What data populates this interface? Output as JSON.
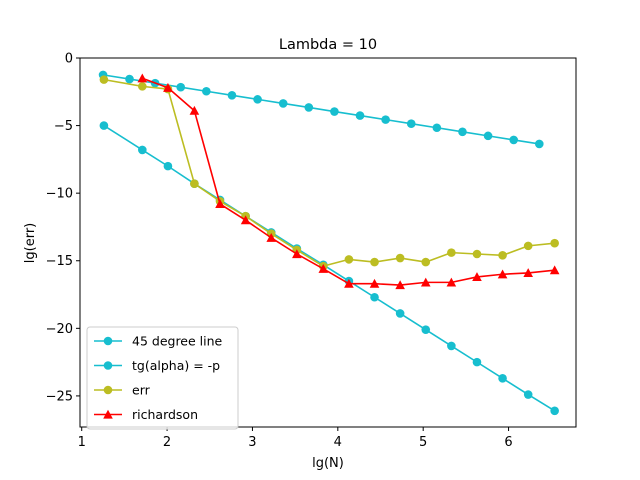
{
  "chart_data": {
    "type": "line",
    "title": "Lambda = 10",
    "xlabel": "lg(N)",
    "ylabel": "lg(err)",
    "xlim": [
      0.98,
      6.79
    ],
    "ylim": [
      -27.3,
      0.0
    ],
    "xticks": [
      1,
      2,
      3,
      4,
      5,
      6
    ],
    "yticks": [
      0,
      -5,
      -10,
      -15,
      -20,
      -25
    ],
    "xtick_labels": [
      "1",
      "2",
      "3",
      "4",
      "5",
      "6"
    ],
    "ytick_labels": [
      "0",
      "−5",
      "−10",
      "−15",
      "−20",
      "−25"
    ],
    "grid": false,
    "legend_position": "lower-left",
    "series": [
      {
        "name": "45 degree line",
        "color": "#17becf",
        "marker": "circle",
        "x": [
          1.25,
          1.56,
          1.86,
          2.16,
          2.46,
          2.76,
          3.06,
          3.36,
          3.66,
          3.96,
          4.26,
          4.56,
          4.86,
          5.16,
          5.46,
          5.76,
          6.06,
          6.36
        ],
        "y": [
          -1.25,
          -1.56,
          -1.86,
          -2.16,
          -2.46,
          -2.76,
          -3.06,
          -3.36,
          -3.66,
          -3.96,
          -4.26,
          -4.56,
          -4.86,
          -5.16,
          -5.46,
          -5.76,
          -6.06,
          -6.36
        ]
      },
      {
        "name": "tg(alpha) = -p",
        "color": "#17becf",
        "marker": "circle",
        "x": [
          1.26,
          1.71,
          2.01,
          2.32,
          2.62,
          2.92,
          3.22,
          3.52,
          3.83,
          4.13,
          4.43,
          4.73,
          5.03,
          5.33,
          5.63,
          5.93,
          6.23,
          6.54
        ],
        "y": [
          -5.0,
          -6.8,
          -8.0,
          -9.3,
          -10.5,
          -11.7,
          -12.9,
          -14.1,
          -15.3,
          -16.5,
          -17.7,
          -18.9,
          -20.1,
          -21.3,
          -22.5,
          -23.7,
          -24.9,
          -26.1
        ]
      },
      {
        "name": "err",
        "color": "#bcbd22",
        "marker": "circle",
        "x": [
          1.26,
          1.71,
          2.01,
          2.32,
          2.62,
          2.92,
          3.22,
          3.52,
          3.83,
          4.13,
          4.43,
          4.73,
          5.03,
          5.33,
          5.63,
          5.93,
          6.23,
          6.54
        ],
        "y": [
          -1.6,
          -2.1,
          -2.3,
          -9.3,
          -10.6,
          -11.7,
          -13.0,
          -14.2,
          -15.4,
          -14.9,
          -15.1,
          -14.8,
          -15.1,
          -14.4,
          -14.5,
          -14.6,
          -13.9,
          -13.7
        ]
      },
      {
        "name": "richardson",
        "color": "#ff0000",
        "marker": "triangle",
        "x": [
          1.71,
          2.01,
          2.32,
          2.62,
          2.92,
          3.22,
          3.52,
          3.83,
          4.13,
          4.43,
          4.73,
          5.03,
          5.33,
          5.63,
          5.93,
          6.23,
          6.54
        ],
        "y": [
          -1.5,
          -2.2,
          -3.9,
          -10.8,
          -12.0,
          -13.3,
          -14.5,
          -15.6,
          -16.7,
          -16.7,
          -16.8,
          -16.6,
          -16.6,
          -16.2,
          -16.0,
          -15.9,
          -15.7
        ]
      }
    ]
  }
}
